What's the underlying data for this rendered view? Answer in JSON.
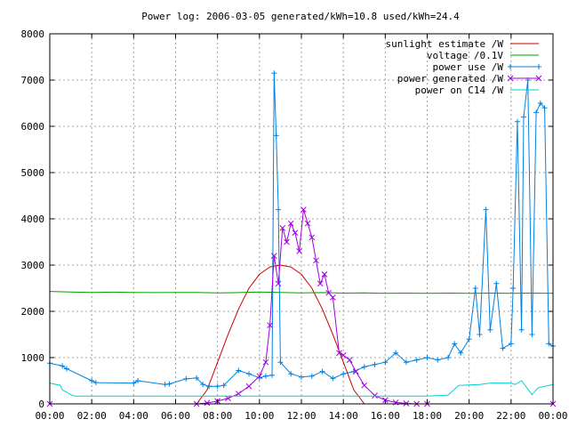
{
  "chart_data": {
    "type": "line",
    "title": "Power log: 2006-03-05 generated/kWh=10.8 used/kWh=24.4",
    "x_ticks": [
      "00:00",
      "02:00",
      "04:00",
      "06:00",
      "08:00",
      "10:00",
      "12:00",
      "14:00",
      "16:00",
      "18:00",
      "20:00",
      "22:00",
      "00:00"
    ],
    "y_ticks": [
      "0",
      "1000",
      "2000",
      "3000",
      "4000",
      "5000",
      "6000",
      "7000",
      "8000"
    ],
    "xlim_hours": [
      0,
      24
    ],
    "ylim": [
      0,
      8000
    ],
    "grid": true,
    "legend_position": "top-right",
    "series": [
      {
        "name": "sunlight estimate /W",
        "color": "#cc0000",
        "marker": "none",
        "x": [
          0,
          7.0,
          7.5,
          8.0,
          8.5,
          9.0,
          9.5,
          10.0,
          10.5,
          11.0,
          11.5,
          12.0,
          12.5,
          13.0,
          13.5,
          14.0,
          14.5,
          15.0,
          15.5,
          16.0,
          24
        ],
        "y": [
          0,
          0,
          300,
          900,
          1500,
          2050,
          2500,
          2800,
          2960,
          3000,
          2960,
          2800,
          2500,
          2050,
          1500,
          900,
          300,
          0,
          0,
          0,
          0
        ]
      },
      {
        "name": "voltage /0.1V",
        "color": "#00a000",
        "marker": "none",
        "x": [
          0,
          1,
          2,
          3,
          4,
          5,
          6,
          7,
          8,
          9,
          10,
          11,
          12,
          13,
          14,
          15,
          16,
          17,
          18,
          19,
          20,
          21,
          22,
          23,
          24
        ],
        "y": [
          2430,
          2420,
          2410,
          2415,
          2410,
          2405,
          2410,
          2410,
          2400,
          2405,
          2420,
          2410,
          2400,
          2405,
          2395,
          2400,
          2390,
          2395,
          2390,
          2395,
          2390,
          2395,
          2390,
          2395,
          2390
        ]
      },
      {
        "name": "power use /W",
        "color": "#0080e0",
        "marker": "plus",
        "x": [
          0,
          0.6,
          0.8,
          2.0,
          2.2,
          4.0,
          4.2,
          5.5,
          5.7,
          6.5,
          7.0,
          7.3,
          7.6,
          8.0,
          8.3,
          9.0,
          9.5,
          10.0,
          10.3,
          10.6,
          10.7,
          10.8,
          10.9,
          11.0,
          11.5,
          12.0,
          12.5,
          13.0,
          13.5,
          14.0,
          14.5,
          15.0,
          15.5,
          16.0,
          16.5,
          17.0,
          17.5,
          18.0,
          18.5,
          19.0,
          19.3,
          19.6,
          20.0,
          20.3,
          20.5,
          20.8,
          21.0,
          21.3,
          21.6,
          22.0,
          22.1,
          22.3,
          22.5,
          22.6,
          22.8,
          23.0,
          23.2,
          23.4,
          23.6,
          23.8,
          24.0
        ],
        "y": [
          880,
          820,
          760,
          500,
          460,
          450,
          500,
          420,
          430,
          540,
          560,
          420,
          380,
          380,
          400,
          720,
          650,
          560,
          600,
          620,
          7150,
          5800,
          4200,
          900,
          650,
          580,
          600,
          700,
          550,
          650,
          700,
          800,
          850,
          900,
          1100,
          900,
          950,
          1000,
          950,
          1000,
          1300,
          1100,
          1400,
          2500,
          1500,
          4200,
          1600,
          2600,
          1200,
          1300,
          2500,
          6100,
          1600,
          6200,
          7000,
          1500,
          6300,
          6500,
          6400,
          1300,
          1250
        ]
      },
      {
        "name": "power generated /W",
        "color": "#a000e0",
        "marker": "cross",
        "x": [
          0,
          7.0,
          7.5,
          8.0,
          8.5,
          9.0,
          9.5,
          10.0,
          10.3,
          10.5,
          10.7,
          10.9,
          11.1,
          11.3,
          11.5,
          11.7,
          11.9,
          12.1,
          12.3,
          12.5,
          12.7,
          12.9,
          13.1,
          13.3,
          13.5,
          13.8,
          14.0,
          14.3,
          14.6,
          15.0,
          15.5,
          16.0,
          16.5,
          17.0,
          17.5,
          18.0,
          24
        ],
        "y": [
          0,
          0,
          20,
          60,
          120,
          220,
          380,
          600,
          900,
          1700,
          3200,
          2600,
          3800,
          3500,
          3900,
          3700,
          3300,
          4200,
          3900,
          3600,
          3100,
          2600,
          2800,
          2400,
          2300,
          1100,
          1050,
          950,
          700,
          400,
          180,
          80,
          30,
          10,
          0,
          0,
          0
        ]
      },
      {
        "name": "power on C14 /W",
        "color": "#00d0d0",
        "marker": "none",
        "x": [
          0,
          0.5,
          0.6,
          1.0,
          1.2,
          3.0,
          6.0,
          9.0,
          12.0,
          15.0,
          18.0,
          19.0,
          19.5,
          20.5,
          21.0,
          22.0,
          22.2,
          22.5,
          23.0,
          23.3,
          24.0
        ],
        "y": [
          450,
          400,
          300,
          200,
          170,
          170,
          170,
          170,
          170,
          170,
          170,
          190,
          400,
          420,
          450,
          450,
          420,
          500,
          200,
          350,
          420
        ]
      }
    ]
  }
}
